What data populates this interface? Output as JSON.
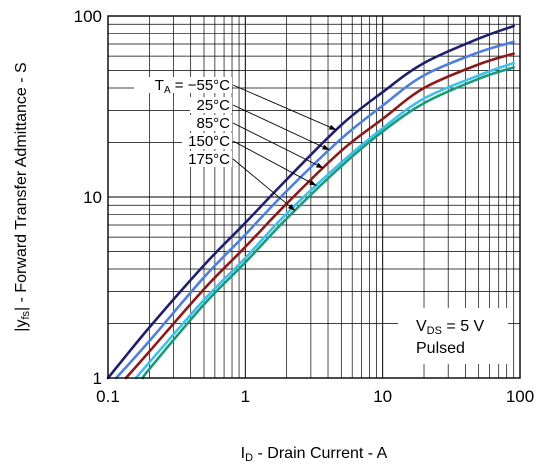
{
  "chart_data": {
    "type": "line",
    "xlabel": {
      "main": "I",
      "sub": "D",
      "rest": " - Drain Current - A"
    },
    "ylabel": {
      "main": "|y",
      "sub": "fs",
      "rest": "| - Forward Transfer Admittance - S"
    },
    "xscale": "log",
    "yscale": "log",
    "xlim": [
      0.1,
      100
    ],
    "ylim": [
      1,
      100
    ],
    "x_ticks": [
      0.1,
      1,
      10,
      100
    ],
    "x_tick_labels": [
      "0.1",
      "1",
      "10",
      "100"
    ],
    "y_ticks": [
      1,
      10,
      100
    ],
    "y_tick_labels": [
      "1",
      "10",
      "100"
    ],
    "grid": true,
    "legend": "top-left inside, labels with leader arrows",
    "series": [
      {
        "name": "TA = −55°C",
        "label": {
          "main": "T",
          "sub": "A",
          "rest": " = −55°C"
        },
        "color": "#1f1f6e",
        "points": [
          [
            0.1,
            1.0
          ],
          [
            0.2,
            1.9
          ],
          [
            0.5,
            4.2
          ],
          [
            1,
            7.2
          ],
          [
            2,
            12.5
          ],
          [
            5,
            25
          ],
          [
            10,
            38
          ],
          [
            20,
            55
          ],
          [
            50,
            75
          ],
          [
            90,
            88
          ]
        ]
      },
      {
        "name": "25°C",
        "label": {
          "main": "25°C"
        },
        "color": "#4f7fd9",
        "points": [
          [
            0.115,
            1.0
          ],
          [
            0.2,
            1.6
          ],
          [
            0.5,
            3.6
          ],
          [
            1,
            6.2
          ],
          [
            2,
            10.8
          ],
          [
            5,
            21
          ],
          [
            10,
            32
          ],
          [
            20,
            47
          ],
          [
            50,
            63
          ],
          [
            90,
            72
          ]
        ]
      },
      {
        "name": "85°C",
        "label": {
          "main": "85°C"
        },
        "color": "#8b1a1a",
        "points": [
          [
            0.135,
            1.0
          ],
          [
            0.2,
            1.4
          ],
          [
            0.5,
            3.1
          ],
          [
            1,
            5.3
          ],
          [
            2,
            9.2
          ],
          [
            5,
            18
          ],
          [
            10,
            27
          ],
          [
            20,
            40
          ],
          [
            50,
            54
          ],
          [
            90,
            62
          ]
        ]
      },
      {
        "name": "150°C",
        "label": {
          "main": "150°C"
        },
        "color": "#3fc0e8",
        "points": [
          [
            0.16,
            1.0
          ],
          [
            0.2,
            1.22
          ],
          [
            0.5,
            2.7
          ],
          [
            1,
            4.6
          ],
          [
            2,
            8.1
          ],
          [
            5,
            15.5
          ],
          [
            10,
            24
          ],
          [
            20,
            35
          ],
          [
            50,
            47
          ],
          [
            90,
            55
          ]
        ]
      },
      {
        "name": "175°C",
        "label": {
          "main": "175°C"
        },
        "color": "#1a9a7a",
        "points": [
          [
            0.18,
            1.0
          ],
          [
            0.2,
            1.12
          ],
          [
            0.5,
            2.55
          ],
          [
            1,
            4.35
          ],
          [
            2,
            7.6
          ],
          [
            5,
            14.8
          ],
          [
            10,
            23
          ],
          [
            20,
            33
          ],
          [
            50,
            45
          ],
          [
            90,
            52
          ]
        ]
      }
    ],
    "annotation": {
      "line1": {
        "main": "V",
        "sub": "DS",
        "rest": " = 5 V"
      },
      "line2": "Pulsed"
    }
  }
}
